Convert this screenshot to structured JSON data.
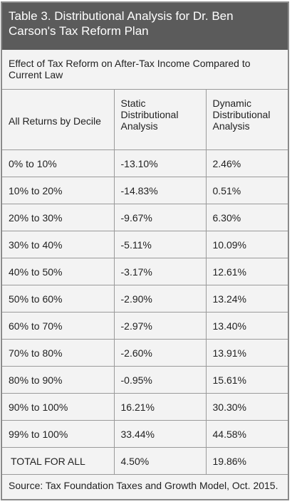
{
  "table": {
    "title": "Table 3. Distributional Analysis for Dr. Ben Carson's Tax Reform Plan",
    "subtitle": "Effect of Tax Reform on After-Tax Income Compared to Current Law",
    "headers": [
      "All Returns by Decile",
      "Static Distributional Analysis",
      "Dynamic Distributional Analysis"
    ],
    "rows": [
      [
        "0% to 10%",
        "-13.10%",
        "2.46%"
      ],
      [
        "10% to 20%",
        "-14.83%",
        "0.51%"
      ],
      [
        "20% to 30%",
        "-9.67%",
        "6.30%"
      ],
      [
        "30% to 40%",
        "-5.11%",
        "10.09%"
      ],
      [
        "40% to 50%",
        "-3.17%",
        "12.61%"
      ],
      [
        "50% to 60%",
        "-2.90%",
        "13.24%"
      ],
      [
        "60% to 70%",
        "-2.97%",
        "13.40%"
      ],
      [
        "70% to 80%",
        "-2.60%",
        "13.91%"
      ],
      [
        "80% to 90%",
        "-0.95%",
        "15.61%"
      ],
      [
        "90% to 100%",
        "16.21%",
        "30.30%"
      ],
      [
        "99% to 100%",
        "33.44%",
        "44.58%"
      ],
      [
        "TOTAL FOR ALL",
        "4.50%",
        "19.86%"
      ]
    ],
    "source": "Source: Tax Foundation Taxes and Growth Model, Oct. 2015."
  },
  "colors": {
    "title_bg": "#5b5b5b",
    "body_bg": "#f3f3f3",
    "border": "#8a8a8a"
  }
}
